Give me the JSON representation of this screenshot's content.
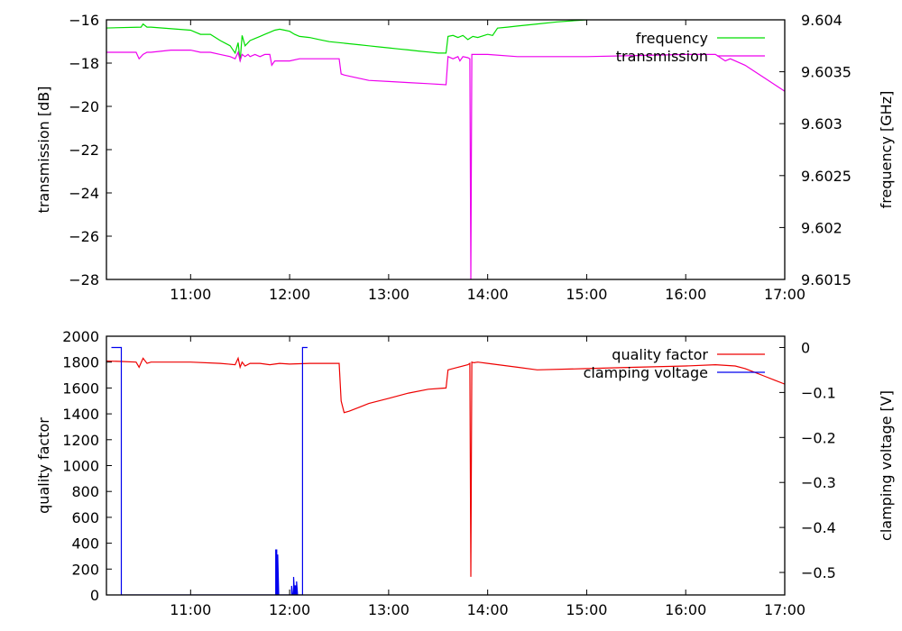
{
  "chart_data": [
    {
      "type": "line",
      "ylabel_left": "transmission [dB]",
      "ylabel_right": "frequency [GHz]",
      "xlim": [
        10.15,
        17.0
      ],
      "ylim_left": [
        -28,
        -16
      ],
      "ylim_right": [
        9.6015,
        9.604
      ],
      "x_ticks": [
        11,
        12,
        13,
        14,
        15,
        16,
        17
      ],
      "x_tick_labels": [
        "11:00",
        "12:00",
        "13:00",
        "14:00",
        "15:00",
        "16:00",
        "17:00"
      ],
      "y_ticks_left": [
        -28,
        -26,
        -24,
        -22,
        -20,
        -18,
        -16
      ],
      "y_ticks_right": [
        9.6015,
        9.602,
        9.6025,
        9.603,
        9.6035,
        9.604
      ],
      "legend_position": "top-right",
      "grid": false,
      "series": [
        {
          "name": "frequency",
          "axis": "right",
          "color": "#00dd00",
          "x": [
            10.1,
            10.5,
            10.52,
            10.56,
            10.6,
            11.0,
            11.05,
            11.1,
            11.2,
            11.3,
            11.4,
            11.45,
            11.48,
            11.5,
            11.52,
            11.55,
            11.58,
            11.6,
            11.65,
            11.7,
            11.75,
            11.8,
            11.85,
            11.9,
            11.95,
            12.0,
            12.05,
            12.1,
            12.2,
            12.3,
            12.4,
            12.5,
            12.6,
            12.7,
            12.8,
            12.9,
            13.0,
            13.1,
            13.2,
            13.3,
            13.4,
            13.5,
            13.58,
            13.6,
            13.65,
            13.7,
            13.75,
            13.8,
            13.85,
            13.9,
            14.0,
            14.05,
            14.1,
            14.2,
            14.3,
            14.5,
            14.7,
            15.0,
            15.3,
            15.5,
            16.0,
            16.1,
            16.12,
            16.15,
            16.2,
            16.3,
            16.4,
            16.5,
            16.6,
            16.7,
            16.8,
            16.9,
            17.0
          ],
          "y": [
            9.60392,
            9.60393,
            9.60396,
            9.60393,
            9.60393,
            9.6039,
            9.60388,
            9.60386,
            9.60386,
            9.6038,
            9.60375,
            9.60368,
            9.60378,
            9.6036,
            9.60385,
            9.60375,
            9.60378,
            9.6038,
            9.60382,
            9.60384,
            9.60386,
            9.60388,
            9.6039,
            9.60391,
            9.6039,
            9.60389,
            9.60386,
            9.60384,
            9.60383,
            9.60381,
            9.60379,
            9.60378,
            9.60377,
            9.60376,
            9.60375,
            9.60374,
            9.60373,
            9.60372,
            9.60371,
            9.6037,
            9.60369,
            9.60368,
            9.60368,
            9.60384,
            9.60385,
            9.60383,
            9.60385,
            9.60381,
            9.60384,
            9.60383,
            9.60386,
            9.60385,
            9.60392,
            9.60393,
            9.60394,
            9.60396,
            9.60398,
            9.604,
            9.60402,
            9.60403,
            9.60405,
            9.60404,
            9.60409,
            9.60406,
            9.60409,
            9.6041,
            9.60411,
            9.60413,
            9.60414,
            9.60416,
            9.60418,
            9.6042,
            9.60422
          ]
        },
        {
          "name": "transmission",
          "axis": "left",
          "color": "#ee00ee",
          "x": [
            10.1,
            10.45,
            10.48,
            10.52,
            10.56,
            10.6,
            10.8,
            11.0,
            11.1,
            11.2,
            11.3,
            11.4,
            11.45,
            11.48,
            11.5,
            11.52,
            11.55,
            11.58,
            11.6,
            11.65,
            11.7,
            11.75,
            11.8,
            11.82,
            11.85,
            11.9,
            11.95,
            12.0,
            12.1,
            12.2,
            12.3,
            12.5,
            12.52,
            12.55,
            12.6,
            12.7,
            12.8,
            13.0,
            13.2,
            13.4,
            13.58,
            13.6,
            13.65,
            13.7,
            13.72,
            13.75,
            13.8,
            13.82,
            13.83,
            13.84,
            13.86,
            13.9,
            14.0,
            14.3,
            14.5,
            15.0,
            15.5,
            16.0,
            16.3,
            16.4,
            16.45,
            16.5,
            16.6,
            16.7,
            16.8,
            16.9,
            17.0
          ],
          "y": [
            -17.5,
            -17.5,
            -17.8,
            -17.6,
            -17.5,
            -17.5,
            -17.4,
            -17.4,
            -17.5,
            -17.5,
            -17.6,
            -17.7,
            -17.8,
            -17.5,
            -17.9,
            -17.6,
            -17.7,
            -17.6,
            -17.7,
            -17.6,
            -17.7,
            -17.6,
            -17.6,
            -18.1,
            -17.9,
            -17.9,
            -17.9,
            -17.9,
            -17.8,
            -17.8,
            -17.8,
            -17.8,
            -18.5,
            -18.55,
            -18.6,
            -18.7,
            -18.8,
            -18.85,
            -18.9,
            -18.95,
            -19.0,
            -17.7,
            -17.8,
            -17.7,
            -17.9,
            -17.7,
            -17.75,
            -17.8,
            -28.0,
            -17.6,
            -17.6,
            -17.6,
            -17.6,
            -17.7,
            -17.7,
            -17.7,
            -17.65,
            -17.6,
            -17.6,
            -17.9,
            -17.8,
            -17.9,
            -18.1,
            -18.4,
            -18.7,
            -19.0,
            -19.3
          ]
        }
      ]
    },
    {
      "type": "line",
      "ylabel_left": "quality factor",
      "ylabel_right": "clamping voltage [V]",
      "xlim": [
        10.15,
        17.0
      ],
      "ylim_left": [
        0,
        2000
      ],
      "ylim_right": [
        -0.55,
        0.025
      ],
      "x_ticks": [
        11,
        12,
        13,
        14,
        15,
        16,
        17
      ],
      "x_tick_labels": [
        "11:00",
        "12:00",
        "13:00",
        "14:00",
        "15:00",
        "16:00",
        "17:00"
      ],
      "y_ticks_left": [
        0,
        200,
        400,
        600,
        800,
        1000,
        1200,
        1400,
        1600,
        1800,
        2000
      ],
      "y_ticks_right": [
        0,
        -0.1,
        -0.2,
        -0.3,
        -0.4,
        -0.5
      ],
      "y_tick_labels_right": [
        "0",
        "−0.1",
        "−0.2",
        "−0.3",
        "−0.4",
        "−0.5"
      ],
      "legend_position": "top-right",
      "grid": false,
      "series": [
        {
          "name": "quality factor",
          "axis": "left",
          "color": "#ee0000",
          "x": [
            10.1,
            10.3,
            10.45,
            10.48,
            10.52,
            10.56,
            10.6,
            11.0,
            11.3,
            11.45,
            11.48,
            11.5,
            11.52,
            11.55,
            11.6,
            11.7,
            11.8,
            11.9,
            12.0,
            12.2,
            12.5,
            12.52,
            12.55,
            12.6,
            12.7,
            12.8,
            13.0,
            13.2,
            13.4,
            13.58,
            13.6,
            13.7,
            13.8,
            13.82,
            13.83,
            13.84,
            13.86,
            13.9,
            14.0,
            14.3,
            14.5,
            15.0,
            15.5,
            16.0,
            16.3,
            16.5,
            16.6,
            16.7,
            16.8,
            16.9,
            17.0
          ],
          "y": [
            1810,
            1805,
            1800,
            1760,
            1830,
            1790,
            1800,
            1800,
            1790,
            1780,
            1830,
            1760,
            1800,
            1770,
            1790,
            1790,
            1780,
            1790,
            1785,
            1790,
            1790,
            1500,
            1410,
            1420,
            1450,
            1480,
            1520,
            1560,
            1590,
            1600,
            1740,
            1760,
            1780,
            1790,
            140,
            1800,
            1795,
            1800,
            1790,
            1760,
            1740,
            1750,
            1760,
            1770,
            1780,
            1770,
            1750,
            1720,
            1690,
            1660,
            1630
          ]
        },
        {
          "name": "clamping voltage",
          "axis": "right",
          "color": "#0000ee",
          "x": [
            10.2,
            10.3,
            10.3,
            10.32,
            11.86,
            11.86,
            11.87,
            11.87,
            11.88,
            11.88,
            11.89,
            12.02,
            12.02,
            12.03,
            12.04,
            12.04,
            12.05,
            12.05,
            12.06,
            12.06,
            12.07,
            12.07,
            12.08,
            12.13,
            12.13,
            12.14,
            12.18
          ],
          "y": [
            0,
            0,
            -0.55,
            -0.55,
            -0.55,
            -0.45,
            -0.45,
            -0.55,
            -0.55,
            -0.46,
            -0.55,
            -0.55,
            -0.53,
            -0.55,
            -0.55,
            -0.51,
            -0.55,
            -0.53,
            -0.53,
            -0.55,
            -0.55,
            -0.52,
            -0.55,
            -0.55,
            0,
            0,
            0
          ]
        }
      ]
    }
  ]
}
